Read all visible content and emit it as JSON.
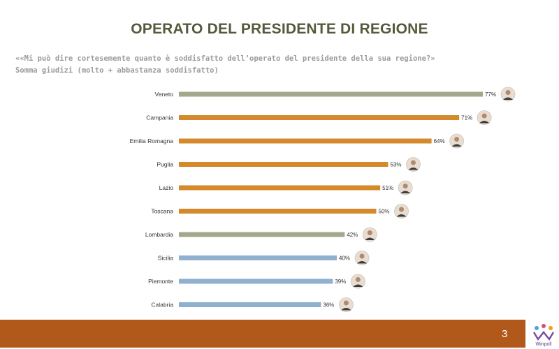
{
  "page": {
    "title": "OPERATO DEL PRESIDENTE DI REGIONE",
    "subtitle_line1": "««Mi può dire cortesemente quanto è soddisfatto dell’operato del presidente della sua regione?»",
    "subtitle_line2": "Somma giudizi (molto + abbastanza soddisfatto)",
    "page_number": "3",
    "logo_text": "Winpoll"
  },
  "colors": {
    "olive": "#a3a88c",
    "orange": "#d48a2c",
    "blue": "#8fb0cf",
    "footer": "#b1591b"
  },
  "chart_data": {
    "type": "bar",
    "orientation": "horizontal",
    "title": "",
    "xlabel": "",
    "ylabel": "",
    "xlim": [
      0,
      100
    ],
    "grid": false,
    "legend": "none",
    "value_suffix": "%",
    "categories": [
      "Veneto",
      "Campania",
      "Emilia Romagna",
      "Puglia",
      "Lazio",
      "Toscana",
      "Lombardia",
      "Sicilia",
      "Piemonte",
      "Calabria"
    ],
    "values": [
      77,
      71,
      64,
      53,
      51,
      50,
      42,
      40,
      39,
      36
    ],
    "bar_colors": [
      "olive",
      "orange",
      "orange",
      "orange",
      "orange",
      "orange",
      "olive",
      "blue",
      "blue",
      "blue"
    ]
  }
}
